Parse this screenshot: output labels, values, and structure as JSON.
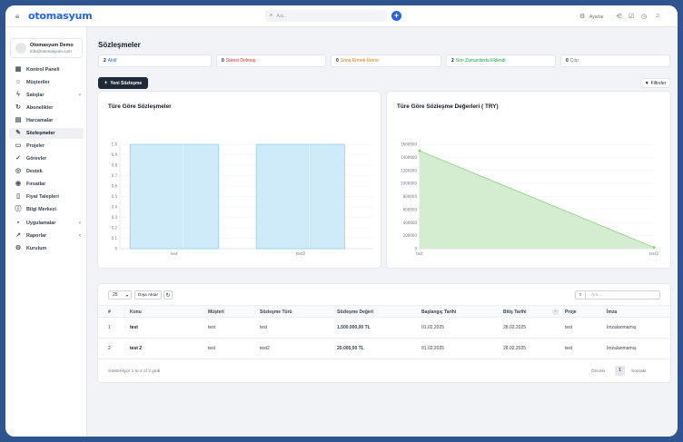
{
  "header": {
    "logo": "otomasyum",
    "search_placeholder": "Ara...",
    "settings_label": "Ayarlar"
  },
  "user": {
    "name": "Otomasyum Demo",
    "email": "info@otomasyum.com"
  },
  "sidebar": {
    "items": [
      {
        "label": "Kontrol Paneli",
        "icon": "grid-icon",
        "glyph": "▦",
        "chevron": false
      },
      {
        "label": "Müşteriler",
        "icon": "user-icon",
        "glyph": "☺",
        "chevron": false
      },
      {
        "label": "Satışlar",
        "icon": "bolt-icon",
        "glyph": "ϟ",
        "chevron": true
      },
      {
        "label": "Abonelikler",
        "icon": "refresh-icon",
        "glyph": "↻",
        "chevron": false
      },
      {
        "label": "Harcamalar",
        "icon": "receipt-icon",
        "glyph": "▤",
        "chevron": false
      },
      {
        "label": "Sözleşmeler",
        "icon": "contract-icon",
        "glyph": "✎",
        "chevron": false
      },
      {
        "label": "Projeler",
        "icon": "folder-icon",
        "glyph": "▭",
        "chevron": false
      },
      {
        "label": "Görevler",
        "icon": "check-circle-icon",
        "glyph": "✓",
        "chevron": false
      },
      {
        "label": "Destek",
        "icon": "support-icon",
        "glyph": "◎",
        "chevron": false
      },
      {
        "label": "Fırsatlar",
        "icon": "target-icon",
        "glyph": "◉",
        "chevron": false
      },
      {
        "label": "Fiyat Talepleri",
        "icon": "document-icon",
        "glyph": "▯",
        "chevron": false
      },
      {
        "label": "Bilgi Merkezi",
        "icon": "info-icon",
        "glyph": "ⓘ",
        "chevron": false
      },
      {
        "label": "Uygulamalar",
        "icon": "apps-icon",
        "glyph": "▪",
        "chevron": true
      },
      {
        "label": "Raporlar",
        "icon": "chart-icon",
        "glyph": "↗",
        "chevron": true
      },
      {
        "label": "Kurulum",
        "icon": "gear-icon",
        "glyph": "⚙",
        "chevron": false
      }
    ]
  },
  "page": {
    "title": "Sözleşmeler"
  },
  "stats": [
    {
      "count": "2",
      "label": "Aktif",
      "color": "#2563eb"
    },
    {
      "count": "0",
      "label": "Süresi Dolmuş",
      "color": "#dc2626"
    },
    {
      "count": "0",
      "label": "Sona Ermek Üzere",
      "color": "#d97706"
    },
    {
      "count": "2",
      "label": "Son Zamanlarda Eklendi",
      "color": "#16a34a"
    },
    {
      "count": "0",
      "label": "Çöp",
      "color": "#6b7280"
    }
  ],
  "actions": {
    "new_contract": "Yeni Sözleşme",
    "filters": "Filtreler"
  },
  "chart_data": [
    {
      "type": "bar",
      "title": "Türe Göre Sözleşmeler",
      "categories": [
        "test",
        "test2"
      ],
      "values": [
        1,
        1
      ],
      "ylim": [
        0,
        1
      ],
      "yticks": [
        "0",
        "0.1",
        "0.2",
        "0.3",
        "0.4",
        "0.5",
        "0.6",
        "0.7",
        "0.8",
        "0.9",
        "1.0"
      ],
      "color": "#cfeaf8"
    },
    {
      "type": "area",
      "title": "Türe Göre Sözleşme Değerleri ( TRY)",
      "categories": [
        "test",
        "test2"
      ],
      "values": [
        1500000,
        20000
      ],
      "ylim": [
        0,
        1600000
      ],
      "yticks": [
        "0",
        "200000",
        "400000",
        "600000",
        "800000",
        "1000000",
        "1200000",
        "1400000",
        "1600000"
      ],
      "color": "#d4ecd0"
    }
  ],
  "table": {
    "page_size": "25",
    "export_label": "Dışa Aktar",
    "search_placeholder": "Ara...",
    "columns": [
      "#",
      "Konu",
      "Müşteri",
      "Sözleşme Türü",
      "Sözleşme Değeri",
      "Başlangıç Tarihi",
      "Bitiş Tarihi",
      "Proje",
      "İmza"
    ],
    "rows": [
      [
        "1",
        "test",
        "test",
        "test",
        "1.500.000,00 TL",
        "01.02.2025",
        "28.02.2025",
        "test",
        "İmzalanmamış"
      ],
      [
        "2",
        "test 2",
        "test",
        "test2",
        "20.000,00 TL",
        "01.02.2025",
        "28.02.2025",
        "test",
        "İmzalanmamış"
      ]
    ],
    "footer_info": "Gösteriliyor 1 to 2 of 2 girdi",
    "prev": "Önceki",
    "current_page": "1",
    "next": "Sonraki"
  }
}
